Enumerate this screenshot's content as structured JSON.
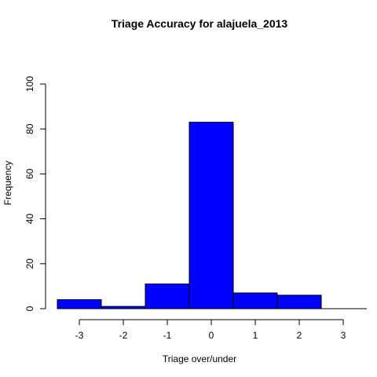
{
  "chart_data": {
    "type": "bar",
    "title": "Triage Accuracy for  alajuela_2013",
    "xlabel": "Triage over/under",
    "ylabel": "Frequency",
    "xlim": [
      -3.5,
      3.5
    ],
    "ylim": [
      0,
      100
    ],
    "x_ticks": [
      -3,
      -2,
      -1,
      0,
      1,
      2,
      3
    ],
    "y_ticks": [
      0,
      20,
      40,
      60,
      80,
      100
    ],
    "bins": [
      {
        "from": -3.5,
        "to": -2.5,
        "value": 4
      },
      {
        "from": -2.5,
        "to": -1.5,
        "value": 1
      },
      {
        "from": -1.5,
        "to": -0.5,
        "value": 11
      },
      {
        "from": -0.5,
        "to": 0.5,
        "value": 83
      },
      {
        "from": 0.5,
        "to": 1.5,
        "value": 7
      },
      {
        "from": 1.5,
        "to": 2.5,
        "value": 6
      }
    ],
    "bar_color": "#0000ff",
    "bar_stroke": "#000000",
    "grid": false
  }
}
